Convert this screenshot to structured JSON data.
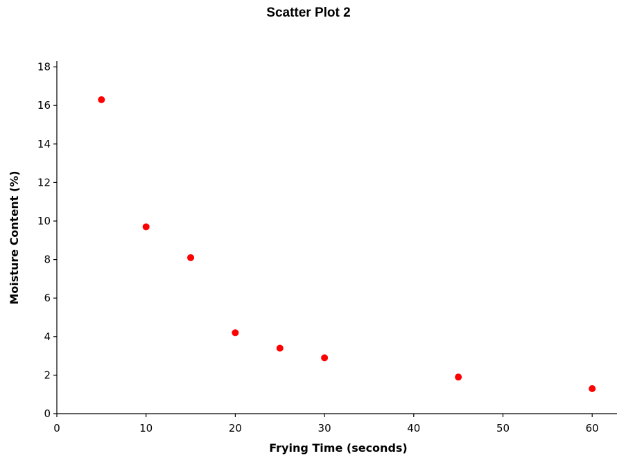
{
  "chart_data": {
    "type": "scatter",
    "title": "Scatter Plot 2",
    "xlabel": "Frying Time (seconds)",
    "ylabel": "Moisture Content (%)",
    "xlim": [
      0,
      65
    ],
    "ylim": [
      0,
      18
    ],
    "xticks": [
      0,
      10,
      20,
      30,
      40,
      50,
      60
    ],
    "yticks": [
      0,
      2,
      4,
      6,
      8,
      10,
      12,
      14,
      16,
      18
    ],
    "grid": false,
    "legend": "none",
    "point_color": "#ff0000",
    "series": [
      {
        "x": [
          5,
          10,
          15,
          20,
          25,
          30,
          45,
          60
        ],
        "y": [
          16.3,
          9.7,
          8.1,
          4.2,
          3.4,
          2.9,
          1.9,
          1.3
        ]
      }
    ]
  }
}
